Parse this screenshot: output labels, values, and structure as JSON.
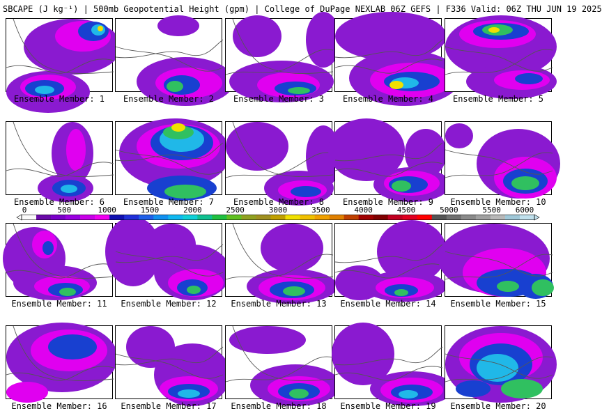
{
  "title": "SBCAPE (J kg⁻¹) | 500mb Geopotential Height (gpm) | College of DuPage NEXLAB 06Z GEFS | F336 Valid: 06Z THU JUN 19 2025",
  "colorbar": {
    "ticks": [
      "0",
      "500",
      "1000",
      "1500",
      "2000",
      "2500",
      "3000",
      "3500",
      "4000",
      "4500",
      "5000",
      "5500",
      "6000"
    ],
    "colors": [
      "#fbfbfb",
      "#6a0aa8",
      "#7a00c9",
      "#9a00e0",
      "#c800e8",
      "#f000f0",
      "#1010b0",
      "#2030d8",
      "#2060e8",
      "#1090f0",
      "#10b8f0",
      "#10d0d8",
      "#10c090",
      "#20c040",
      "#60c020",
      "#90a020",
      "#a09020",
      "#c0a000",
      "#f0e000",
      "#f0c000",
      "#f0a000",
      "#e08000",
      "#c04000",
      "#a00000",
      "#800000",
      "#c00020",
      "#e00020",
      "#ff0000",
      "#555555",
      "#707070",
      "#8a8a8a",
      "#a0a0a0",
      "#b8b8b8",
      "#a0c8d8",
      "#c0e0ec"
    ]
  },
  "panels": [
    {
      "label": "Ensemble Member: 1"
    },
    {
      "label": "Ensemble Member: 2"
    },
    {
      "label": "Ensemble Member: 3"
    },
    {
      "label": "Ensemble Member: 4"
    },
    {
      "label": "Ensemble Member: 5"
    },
    {
      "label": "Ensemble Member: 6"
    },
    {
      "label": "Ensemble Member: 7"
    },
    {
      "label": "Ensemble Member: 8"
    },
    {
      "label": "Ensemble Member: 9"
    },
    {
      "label": "Ensemble Member: 10"
    },
    {
      "label": "Ensemble Member: 11"
    },
    {
      "label": "Ensemble Member: 12"
    },
    {
      "label": "Ensemble Member: 13"
    },
    {
      "label": "Ensemble Member: 14"
    },
    {
      "label": "Ensemble Member: 15"
    },
    {
      "label": "Ensemble Member: 16"
    },
    {
      "label": "Ensemble Member: 17"
    },
    {
      "label": "Ensemble Member: 18"
    },
    {
      "label": "Ensemble Member: 19"
    },
    {
      "label": "Ensemble Member: 20"
    }
  ],
  "map_colors": {
    "purple": "#8a1ad0",
    "magenta": "#e000f0",
    "blue": "#1840d0",
    "cyan": "#20b8e8",
    "green": "#30c060",
    "yellow": "#f0e000",
    "border": "#555555"
  }
}
